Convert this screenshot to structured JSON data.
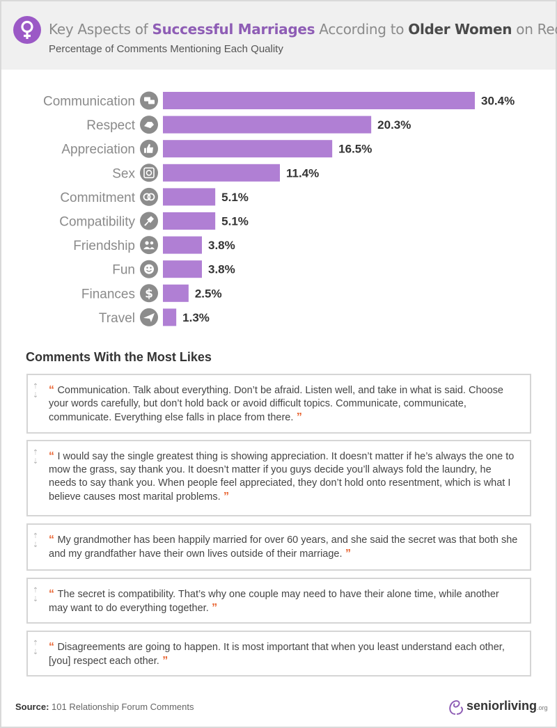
{
  "header": {
    "title_parts": [
      {
        "text": "Key Aspects of ",
        "style": "n"
      },
      {
        "text": "Successful Marriages",
        "style": "b"
      },
      {
        "text": " According to ",
        "style": "n"
      },
      {
        "text": "Older Women",
        "style": "b"
      },
      {
        "text": " on Reddit",
        "style": "n"
      }
    ],
    "subtitle": "Percentage of Comments Mentioning Each Quality",
    "logo_icon": "female-symbol-icon"
  },
  "chart_data": {
    "type": "bar",
    "orientation": "horizontal",
    "title": "Key Aspects of Successful Marriages According to Older Women on Reddit",
    "subtitle": "Percentage of Comments Mentioning Each Quality",
    "categories": [
      "Communication",
      "Respect",
      "Appreciation",
      "Sex",
      "Commitment",
      "Compatibility",
      "Friendship",
      "Fun",
      "Finances",
      "Travel"
    ],
    "values": [
      30.4,
      20.3,
      16.5,
      11.4,
      5.1,
      5.1,
      3.8,
      3.8,
      2.5,
      1.3
    ],
    "value_labels": [
      "30.4%",
      "20.3%",
      "16.5%",
      "11.4%",
      "5.1%",
      "5.1%",
      "3.8%",
      "3.8%",
      "2.5%",
      "1.3%"
    ],
    "icons": [
      "speech-bubbles-icon",
      "handshake-icon",
      "thumbs-up-icon",
      "condom-icon",
      "rings-icon",
      "puzzle-icon",
      "friends-icon",
      "smile-face-icon",
      "dollar-icon",
      "airplane-icon"
    ],
    "xlim": [
      0,
      30.4
    ],
    "bar_color": "#b07fd4",
    "icon_color": "#8c8c8c",
    "grid": false,
    "legend": "none"
  },
  "comments": {
    "title": "Comments With the Most Likes",
    "items": [
      "Communication. Talk about everything. Don’t be afraid. Listen well, and take in what is said. Choose your words carefully, but don’t hold back or avoid difficult topics. Communicate, communicate, communicate. Everything else falls in place from there.",
      "I would say the single greatest thing is showing appreciation. It doesn’t matter if he’s always the one to mow the grass, say thank you. It doesn’t matter if you guys decide you’ll always fold the laundry, he needs to say thank you. When people feel appreciated, they don’t hold onto resentment, which is what I believe causes most marital problems.",
      "My grandmother has been happily married for over 60 years, and she said the secret was that both she and my grandfather have their own lives outside of their marriage.",
      "The secret is compatibility. That’s why one couple may need to have their alone time, while another may want to do everything together.",
      "Disagreements are going to happen. It is most important that when you least understand each other, [you] respect each other."
    ],
    "open_quote": "“",
    "close_quote": "”",
    "arrow_up": "⇡",
    "arrow_down": "⇣"
  },
  "footer": {
    "source_label": "Source:",
    "source_text": "101 Relationship Forum Comments",
    "brand_name": "seniorliving",
    "brand_suffix": ".org"
  },
  "colors": {
    "accent": "#9b59c6",
    "bar": "#b07fd4",
    "quote": "#e8602c",
    "header_bg": "#f0f0f0"
  }
}
